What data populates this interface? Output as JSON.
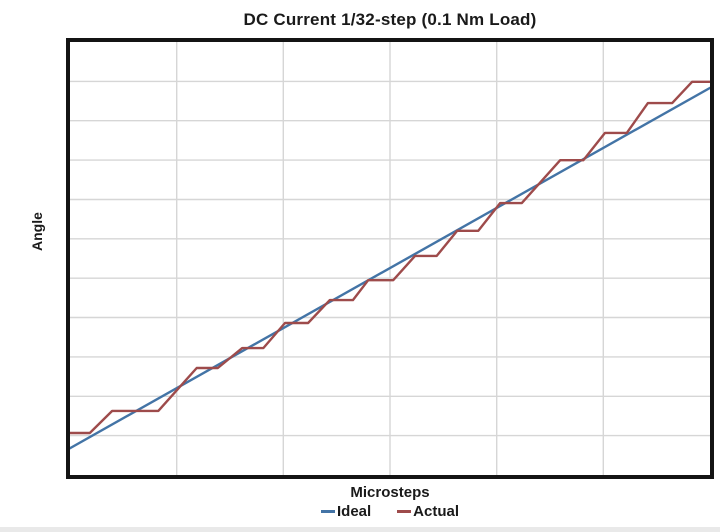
{
  "chart": {
    "title": "DC Current 1/32-step (0.1 Nm Load)",
    "x_axis_label": "Microsteps",
    "y_axis_label": "Angle"
  },
  "chart_data": {
    "type": "line",
    "title": "DC Current 1/32-step (0.1 Nm Load)",
    "xlabel": "Microsteps",
    "ylabel": "Angle",
    "axis_tick_labels_visible": false,
    "x_range_percent": [
      0,
      100
    ],
    "y_range_percent": [
      0,
      100
    ],
    "grid": {
      "on": true,
      "x_divisions": 6,
      "y_divisions": 11,
      "color": "#d6d6d6"
    },
    "frame_color": "#141414",
    "legend": {
      "position": "bottom",
      "entries": [
        "Ideal",
        "Actual"
      ]
    },
    "series": [
      {
        "name": "Ideal",
        "color": "#4374a6",
        "shape": "straight-line",
        "points": [
          [
            0,
            6.2
          ],
          [
            100,
            89.4
          ]
        ]
      },
      {
        "name": "Actual",
        "color": "#9e4b4b",
        "shape": "staircase",
        "points": [
          [
            0,
            9.7
          ],
          [
            3.1,
            9.7
          ],
          [
            6.6,
            14.8
          ],
          [
            13.8,
            14.8
          ],
          [
            19.8,
            24.7
          ],
          [
            23.1,
            24.7
          ],
          [
            26.9,
            29.3
          ],
          [
            30.2,
            29.3
          ],
          [
            33.6,
            35.1
          ],
          [
            37.2,
            35.1
          ],
          [
            40.6,
            40.4
          ],
          [
            44.2,
            40.4
          ],
          [
            46.6,
            45.0
          ],
          [
            50.5,
            45.0
          ],
          [
            53.9,
            50.6
          ],
          [
            57.3,
            50.6
          ],
          [
            60.5,
            56.4
          ],
          [
            63.8,
            56.4
          ],
          [
            67.2,
            62.8
          ],
          [
            70.6,
            62.8
          ],
          [
            76.6,
            72.7
          ],
          [
            80.2,
            72.7
          ],
          [
            83.6,
            79.0
          ],
          [
            87.0,
            79.0
          ],
          [
            90.3,
            85.9
          ],
          [
            94.1,
            85.9
          ],
          [
            97.2,
            90.8
          ],
          [
            100,
            90.8
          ]
        ]
      }
    ]
  }
}
